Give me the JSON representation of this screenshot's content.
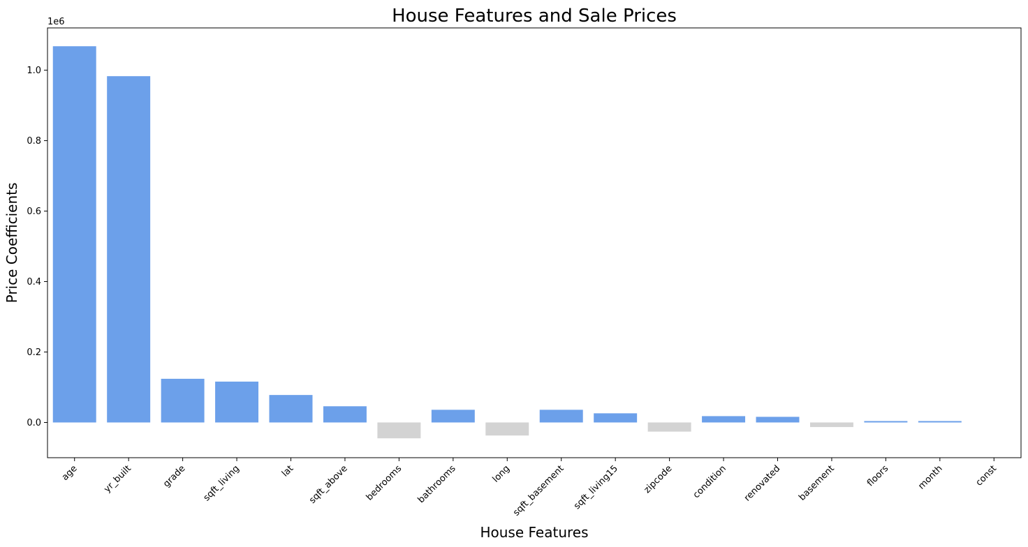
{
  "chart_data": {
    "type": "bar",
    "title": "House Features and Sale Prices",
    "xlabel": "House Features",
    "ylabel": "Price Coefficients",
    "y_offset_label": "1e6",
    "ylim": [
      -0.1,
      1.12
    ],
    "yticks": [
      0.0,
      0.2,
      0.4,
      0.6,
      0.8,
      1.0
    ],
    "ytick_labels": [
      "0.0",
      "0.2",
      "0.4",
      "0.6",
      "0.8",
      "1.0"
    ],
    "categories": [
      "age",
      "yr_built",
      "grade",
      "sqft_living",
      "lat",
      "sqft_above",
      "bedrooms",
      "bathrooms",
      "long",
      "sqft_basement",
      "sqft_living15",
      "zipcode",
      "condition",
      "renovated",
      "basement",
      "floors",
      "month",
      "const"
    ],
    "values": [
      1.068,
      0.983,
      0.124,
      0.116,
      0.078,
      0.046,
      -0.045,
      0.036,
      -0.037,
      0.036,
      0.026,
      -0.026,
      0.018,
      0.016,
      -0.013,
      0.004,
      0.004,
      0.0
    ],
    "positive_color": "#6ca0ea",
    "negative_color": "#d3d3d3",
    "grid": false,
    "legend": "none"
  }
}
